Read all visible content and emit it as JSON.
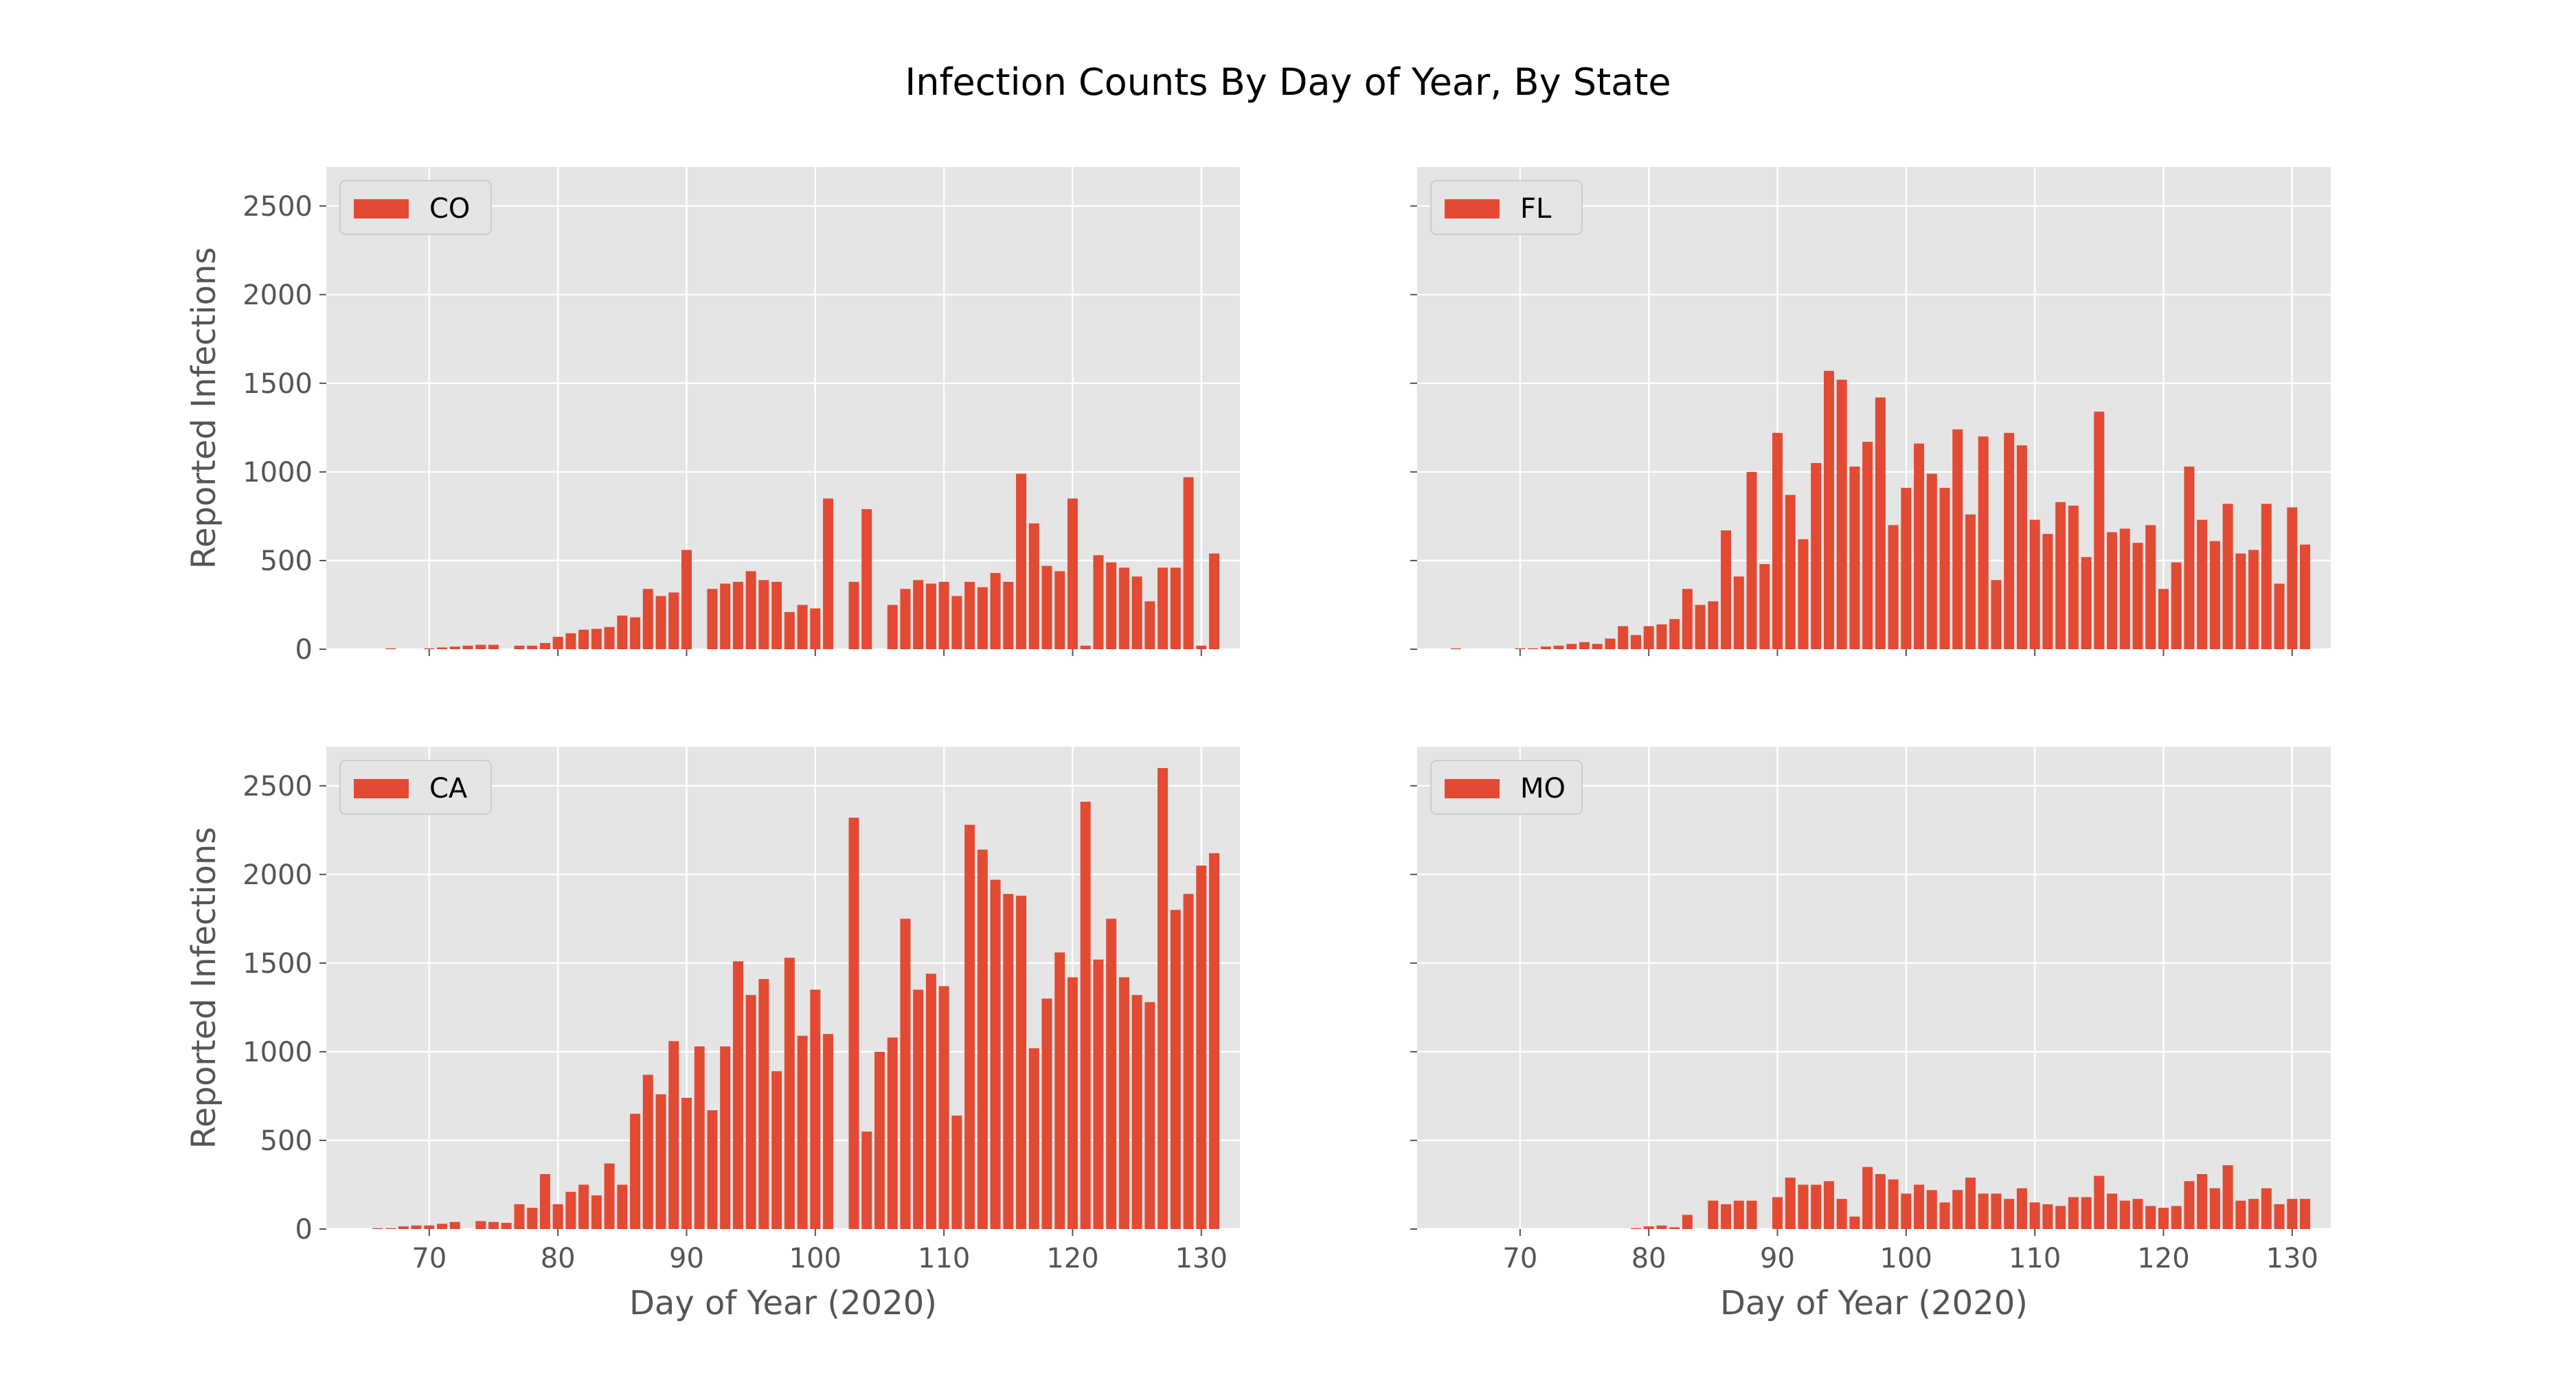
{
  "title": "Infection Counts By Day of Year, By State",
  "colors": {
    "bar": "#E24A33",
    "plot_background": "#E5E5E5",
    "grid": "#FFFFFF",
    "tick_text": "#555555",
    "label_text": "#555555",
    "legend_background": "#E5E5E5",
    "legend_border": "#CCCCCC"
  },
  "chart_data": [
    {
      "type": "bar",
      "panel": "top-left",
      "legend": "CO",
      "legend_position": "upper-left",
      "xlabel": "",
      "ylabel": "Reported Infections",
      "xlim": [
        62,
        133
      ],
      "ylim": [
        0,
        2720
      ],
      "xticks": [
        70,
        80,
        90,
        100,
        110,
        120,
        130
      ],
      "yticks": [
        0,
        500,
        1000,
        1500,
        2000,
        2500
      ],
      "show_x_tick_labels": false,
      "show_y_tick_labels": true,
      "grid": true,
      "x": [
        65,
        66,
        67,
        68,
        69,
        70,
        71,
        72,
        73,
        74,
        75,
        76,
        77,
        78,
        79,
        80,
        81,
        82,
        83,
        84,
        85,
        86,
        87,
        88,
        89,
        90,
        91,
        92,
        93,
        94,
        95,
        96,
        97,
        98,
        99,
        100,
        101,
        102,
        103,
        104,
        105,
        106,
        107,
        108,
        109,
        110,
        111,
        112,
        113,
        114,
        115,
        116,
        117,
        118,
        119,
        120,
        121,
        122,
        123,
        124,
        125,
        126,
        127,
        128,
        129,
        130,
        131
      ],
      "values": [
        0,
        0,
        5,
        0,
        0,
        5,
        10,
        15,
        20,
        25,
        25,
        0,
        20,
        20,
        35,
        70,
        90,
        110,
        115,
        125,
        190,
        180,
        340,
        300,
        320,
        560,
        0,
        340,
        370,
        380,
        440,
        390,
        380,
        210,
        250,
        230,
        850,
        0,
        380,
        790,
        0,
        250,
        340,
        390,
        370,
        380,
        300,
        380,
        350,
        430,
        380,
        990,
        710,
        470,
        440,
        850,
        20,
        530,
        490,
        460,
        410,
        270,
        460,
        460,
        970,
        20,
        540
      ]
    },
    {
      "type": "bar",
      "panel": "top-right",
      "legend": "FL",
      "legend_position": "upper-left",
      "xlabel": "",
      "ylabel": "",
      "xlim": [
        62,
        133
      ],
      "ylim": [
        0,
        2720
      ],
      "xticks": [
        70,
        80,
        90,
        100,
        110,
        120,
        130
      ],
      "yticks": [
        0,
        500,
        1000,
        1500,
        2000,
        2500
      ],
      "show_x_tick_labels": false,
      "show_y_tick_labels": false,
      "grid": true,
      "x": [
        64,
        65,
        66,
        67,
        68,
        69,
        70,
        71,
        72,
        73,
        74,
        75,
        76,
        77,
        78,
        79,
        80,
        81,
        82,
        83,
        84,
        85,
        86,
        87,
        88,
        89,
        90,
        91,
        92,
        93,
        94,
        95,
        96,
        97,
        98,
        99,
        100,
        101,
        102,
        103,
        104,
        105,
        106,
        107,
        108,
        109,
        110,
        111,
        112,
        113,
        114,
        115,
        116,
        117,
        118,
        119,
        120,
        121,
        122,
        123,
        124,
        125,
        126,
        127,
        128,
        129,
        130,
        131
      ],
      "values": [
        0,
        5,
        0,
        0,
        0,
        0,
        5,
        5,
        15,
        20,
        30,
        40,
        30,
        60,
        130,
        80,
        130,
        140,
        170,
        340,
        250,
        270,
        670,
        410,
        1000,
        480,
        1220,
        870,
        620,
        1050,
        1570,
        1520,
        1030,
        1170,
        1420,
        700,
        910,
        1160,
        990,
        910,
        1240,
        760,
        1200,
        390,
        1220,
        1150,
        730,
        650,
        830,
        810,
        520,
        1340,
        660,
        680,
        600,
        700,
        340,
        490,
        1030,
        730,
        610,
        820,
        540,
        560,
        820,
        370,
        800,
        590
      ]
    },
    {
      "type": "bar",
      "panel": "bottom-left",
      "legend": "CA",
      "legend_position": "upper-left",
      "xlabel": "Day of Year (2020)",
      "ylabel": "Reported Infections",
      "xlim": [
        62,
        133
      ],
      "ylim": [
        0,
        2720
      ],
      "xticks": [
        70,
        80,
        90,
        100,
        110,
        120,
        130
      ],
      "yticks": [
        0,
        500,
        1000,
        1500,
        2000,
        2500
      ],
      "show_x_tick_labels": true,
      "show_y_tick_labels": true,
      "grid": true,
      "x": [
        64,
        65,
        66,
        67,
        68,
        69,
        70,
        71,
        72,
        73,
        74,
        75,
        76,
        77,
        78,
        79,
        80,
        81,
        82,
        83,
        84,
        85,
        86,
        87,
        88,
        89,
        90,
        91,
        92,
        93,
        94,
        95,
        96,
        97,
        98,
        99,
        100,
        101,
        102,
        103,
        104,
        105,
        106,
        107,
        108,
        109,
        110,
        111,
        112,
        113,
        114,
        115,
        116,
        117,
        118,
        119,
        120,
        121,
        122,
        123,
        124,
        125,
        126,
        127,
        128,
        129,
        130,
        131
      ],
      "values": [
        0,
        0,
        5,
        5,
        15,
        20,
        20,
        30,
        40,
        0,
        45,
        40,
        35,
        140,
        120,
        310,
        140,
        210,
        250,
        190,
        370,
        250,
        650,
        870,
        760,
        1060,
        740,
        1030,
        670,
        1030,
        1510,
        1320,
        1410,
        890,
        1530,
        1090,
        1350,
        1100,
        0,
        2320,
        550,
        1000,
        1080,
        1750,
        1350,
        1440,
        1370,
        640,
        2280,
        2140,
        1970,
        1890,
        1880,
        1020,
        1300,
        1560,
        1420,
        2410,
        1520,
        1750,
        1420,
        1320,
        1280,
        2600,
        1800,
        1890,
        2050,
        2120
      ]
    },
    {
      "type": "bar",
      "panel": "bottom-right",
      "legend": "MO",
      "legend_position": "upper-left",
      "xlabel": "Day of Year (2020)",
      "ylabel": "",
      "xlim": [
        62,
        133
      ],
      "ylim": [
        0,
        2720
      ],
      "xticks": [
        70,
        80,
        90,
        100,
        110,
        120,
        130
      ],
      "yticks": [
        0,
        500,
        1000,
        1500,
        2000,
        2500
      ],
      "show_x_tick_labels": true,
      "show_y_tick_labels": false,
      "grid": true,
      "x": [
        79,
        80,
        81,
        82,
        83,
        84,
        85,
        86,
        87,
        88,
        89,
        90,
        91,
        92,
        93,
        94,
        95,
        96,
        97,
        98,
        99,
        100,
        101,
        102,
        103,
        104,
        105,
        106,
        107,
        108,
        109,
        110,
        111,
        112,
        113,
        114,
        115,
        116,
        117,
        118,
        119,
        120,
        121,
        122,
        123,
        124,
        125,
        126,
        127,
        128,
        129,
        130,
        131
      ],
      "values": [
        5,
        15,
        20,
        10,
        80,
        0,
        160,
        140,
        160,
        160,
        0,
        180,
        290,
        250,
        250,
        270,
        170,
        70,
        350,
        310,
        280,
        200,
        250,
        220,
        150,
        220,
        290,
        200,
        200,
        170,
        230,
        150,
        140,
        130,
        180,
        180,
        300,
        200,
        160,
        170,
        130,
        120,
        130,
        270,
        310,
        230,
        360,
        160,
        170,
        230,
        140,
        170,
        170
      ]
    }
  ]
}
